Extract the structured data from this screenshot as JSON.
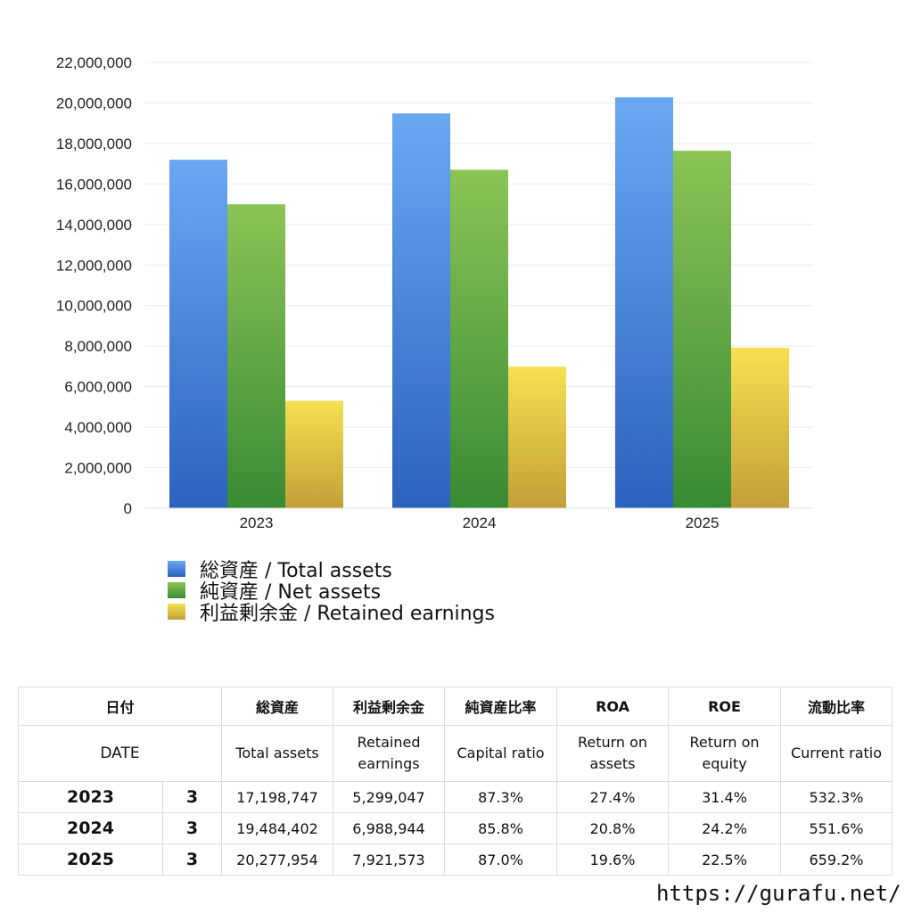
{
  "chart_data": {
    "type": "bar",
    "categories": [
      "2023",
      "2024",
      "2025"
    ],
    "series": [
      {
        "name": "総資産 / Total assets",
        "values": [
          17198747,
          19484402,
          20277954
        ],
        "color": "#4a86d8"
      },
      {
        "name": "純資産 / Net assets",
        "values": [
          15000000,
          16700000,
          17640000
        ],
        "color": "#5aa843"
      },
      {
        "name": "利益剰余金 / Retained earnings",
        "values": [
          5299047,
          6988944,
          7921573
        ],
        "color": "#e8c844"
      }
    ],
    "yticks": [
      "0",
      "2,000,000",
      "4,000,000",
      "6,000,000",
      "8,000,000",
      "10,000,000",
      "12,000,000",
      "14,000,000",
      "16,000,000",
      "18,000,000",
      "20,000,000",
      "22,000,000"
    ],
    "ylim": [
      0,
      22000000
    ],
    "grid": true,
    "legend_position": "bottom-left"
  },
  "table": {
    "header_ja": {
      "date": "日付",
      "total_assets": "総資産",
      "retained": "利益剰余金",
      "capital_ratio": "純資産比率",
      "roa": "ROA",
      "roe": "ROE",
      "current_ratio": "流動比率"
    },
    "header_en": {
      "date": "DATE",
      "total_assets": "Total assets",
      "retained_1": "Retained",
      "retained_2": "earnings",
      "capital_ratio": "Capital ratio",
      "roa_1": "Return on",
      "roa_2": "assets",
      "roe_1": "Return on",
      "roe_2": "equity",
      "current_ratio": "Current ratio"
    },
    "rows": [
      {
        "year": "2023",
        "month": "3",
        "total_assets": "17,198,747",
        "retained": "5,299,047",
        "capital_ratio": "87.3%",
        "roa": "27.4%",
        "roe": "31.4%",
        "current_ratio": "532.3%"
      },
      {
        "year": "2024",
        "month": "3",
        "total_assets": "19,484,402",
        "retained": "6,988,944",
        "capital_ratio": "85.8%",
        "roa": "20.8%",
        "roe": "24.2%",
        "current_ratio": "551.6%"
      },
      {
        "year": "2025",
        "month": "3",
        "total_assets": "20,277,954",
        "retained": "7,921,573",
        "capital_ratio": "87.0%",
        "roa": "19.6%",
        "roe": "22.5%",
        "current_ratio": "659.2%"
      }
    ]
  },
  "footer": {
    "url": "https://gurafu.net/"
  }
}
